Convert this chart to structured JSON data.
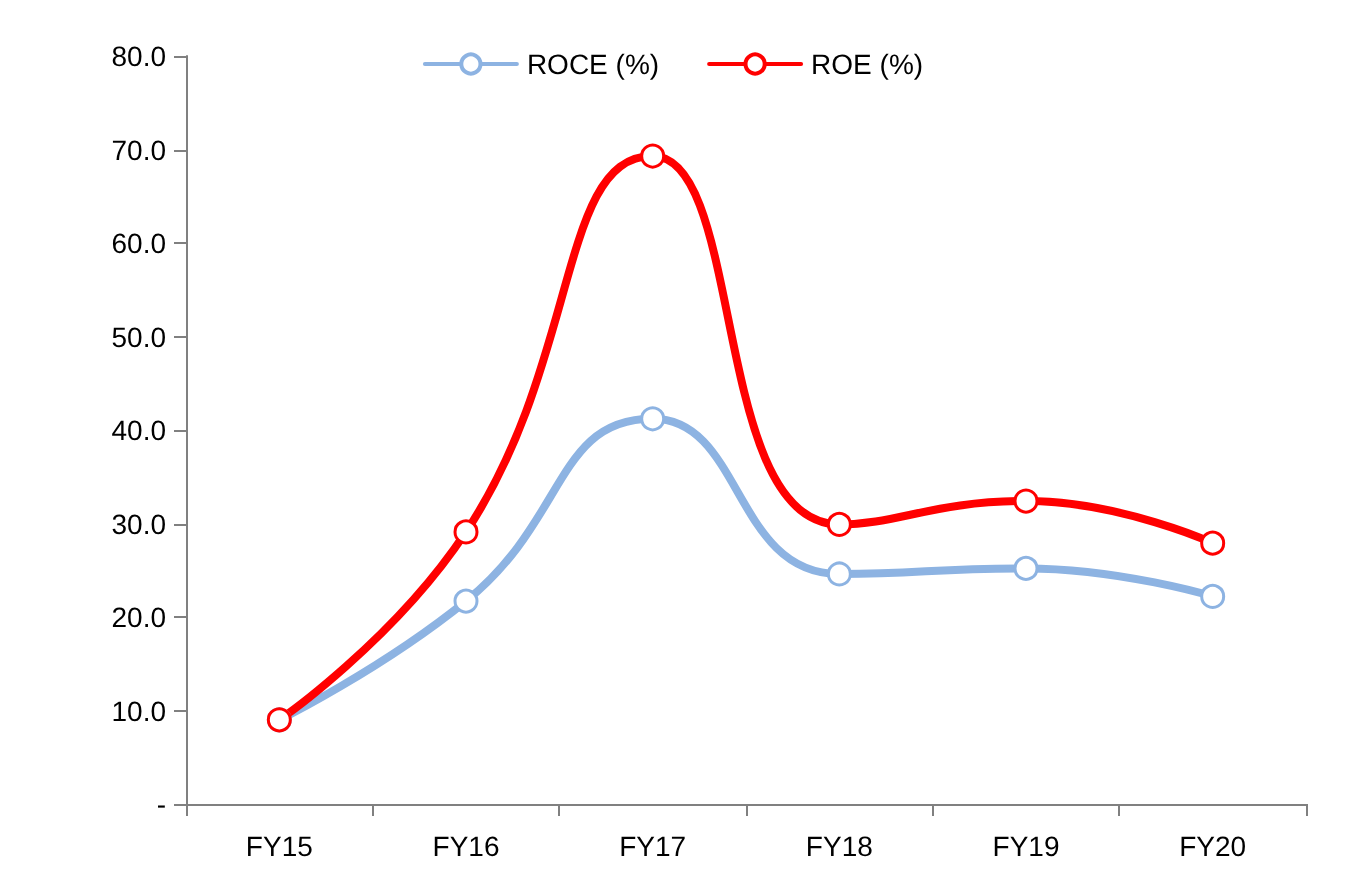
{
  "chart_data": {
    "type": "line",
    "categories": [
      "FY15",
      "FY16",
      "FY17",
      "FY18",
      "FY19",
      "FY20"
    ],
    "series": [
      {
        "name": "ROCE (%)",
        "color": "#8db3e2",
        "values": [
          9.0,
          21.7,
          41.2,
          24.6,
          25.2,
          22.2
        ]
      },
      {
        "name": "ROE (%)",
        "color": "#ff0000",
        "values": [
          9.0,
          29.1,
          69.3,
          29.9,
          32.4,
          27.9
        ]
      }
    ],
    "ylim": [
      0,
      80
    ],
    "yticks": [
      {
        "value": 0,
        "label": "-"
      },
      {
        "value": 10,
        "label": "10.0"
      },
      {
        "value": 20,
        "label": "20.0"
      },
      {
        "value": 30,
        "label": "30.0"
      },
      {
        "value": 40,
        "label": "40.0"
      },
      {
        "value": 50,
        "label": "50.0"
      },
      {
        "value": 60,
        "label": "60.0"
      },
      {
        "value": 70,
        "label": "70.0"
      },
      {
        "value": 80,
        "label": "80.0"
      }
    ],
    "grid": false,
    "legend": "top",
    "marker": "circle",
    "line_style": "solid"
  }
}
